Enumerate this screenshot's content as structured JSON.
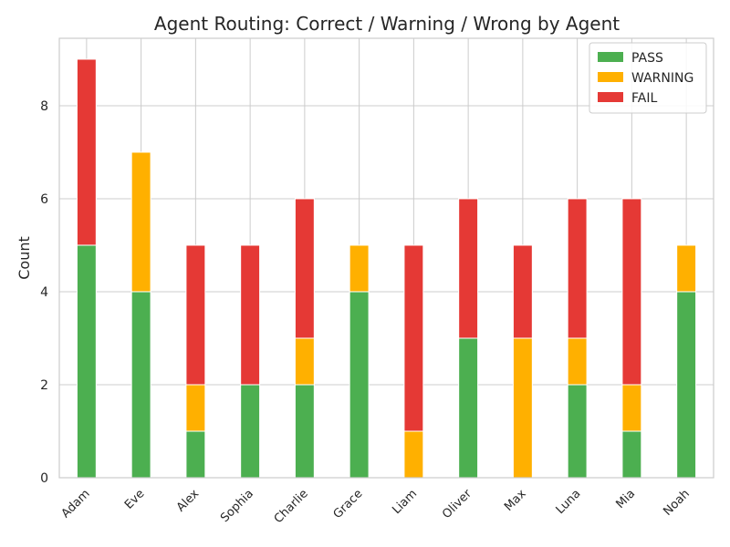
{
  "chart_data": {
    "type": "bar",
    "stacked": true,
    "title": "Agent Routing: Correct / Warning / Wrong by Agent",
    "xlabel": "",
    "ylabel": "Count",
    "categories": [
      "Adam",
      "Eve",
      "Alex",
      "Sophia",
      "Charlie",
      "Grace",
      "Liam",
      "Oliver",
      "Max",
      "Luna",
      "Mia",
      "Noah"
    ],
    "series": [
      {
        "name": "PASS",
        "color": "#4caf50",
        "values": [
          5,
          4,
          1,
          2,
          2,
          4,
          0,
          3,
          0,
          2,
          1,
          4
        ]
      },
      {
        "name": "WARNING",
        "color": "#ffb000",
        "values": [
          0,
          3,
          1,
          0,
          1,
          1,
          1,
          0,
          3,
          1,
          1,
          1
        ]
      },
      {
        "name": "FAIL",
        "color": "#e53935",
        "values": [
          4,
          0,
          3,
          3,
          3,
          0,
          4,
          3,
          2,
          3,
          4,
          0
        ]
      }
    ],
    "ylim": [
      0,
      9.45
    ],
    "yticks": [
      0,
      2,
      4,
      6,
      8
    ],
    "grid": true,
    "legend_position": "top-right"
  }
}
